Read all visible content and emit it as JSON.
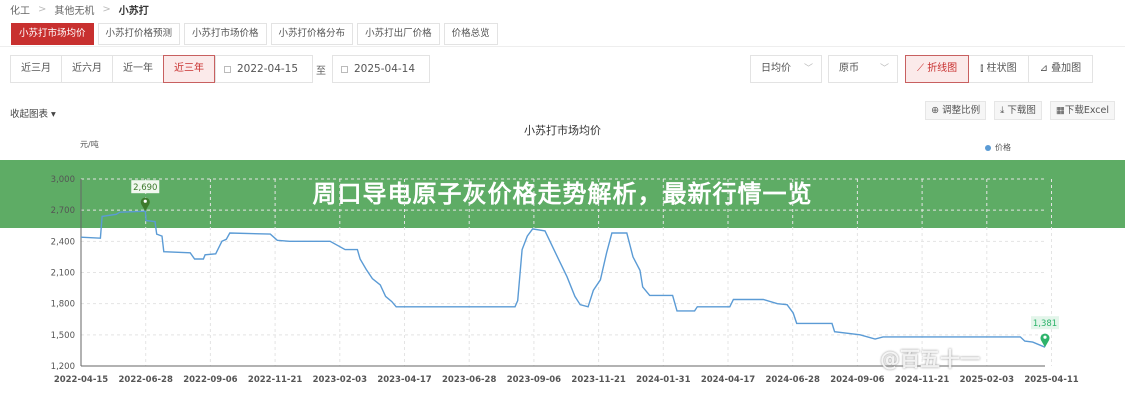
{
  "breadcrumb": [
    "化工",
    "其他无机",
    "小苏打"
  ],
  "tabs": [
    {
      "label": "小苏打市场均价",
      "active": true
    },
    {
      "label": "小苏打价格预测"
    },
    {
      "label": "小苏打市场价格"
    },
    {
      "label": "小苏打价格分布"
    },
    {
      "label": "小苏打出厂价格"
    },
    {
      "label": "价格总览"
    }
  ],
  "ranges": [
    {
      "label": "近三月"
    },
    {
      "label": "近六月"
    },
    {
      "label": "近一年"
    },
    {
      "label": "近三年",
      "active": true
    }
  ],
  "date_from": "2022-04-15",
  "date_sep": "至",
  "date_to": "2025-04-14",
  "select_period": "日均价",
  "select_currency": "原币",
  "chart_types": [
    {
      "label": "折线图",
      "icon": "line-chart-icon",
      "active": true
    },
    {
      "label": "柱状图",
      "icon": "bar-chart-icon"
    },
    {
      "label": "叠加图",
      "icon": "area-chart-icon"
    }
  ],
  "collapse_label": "收起图表",
  "tools": [
    {
      "label": "调整比例",
      "icon": "zoom-icon"
    },
    {
      "label": "下载图",
      "icon": "download-icon"
    },
    {
      "label": "下载Excel",
      "icon": "table-icon"
    }
  ],
  "banner": "周口导电原子灰价格走势解析，最新行情一览",
  "watermark": "@百五十一",
  "colors": {
    "accent": "#c8302f",
    "line": "#5b9bd5",
    "max_marker": "#3d7a2c",
    "min_marker": "#2db36a",
    "banner": "#4ca354"
  },
  "chart_data": {
    "type": "line",
    "title": "小苏打市场均价",
    "ylabel": "元/吨",
    "ylim": [
      1200,
      3000
    ],
    "yticks": [
      1200,
      1500,
      1800,
      2100,
      2400,
      2700,
      3000
    ],
    "xticks": [
      "2022-04-15",
      "2022-06-28",
      "2022-09-06",
      "2022-11-21",
      "2023-02-03",
      "2023-04-17",
      "2023-06-28",
      "2023-09-06",
      "2023-11-21",
      "2024-01-31",
      "2024-04-17",
      "2024-06-28",
      "2024-09-06",
      "2024-11-21",
      "2025-02-03",
      "2025-04-11"
    ],
    "xlim": [
      "2022-04-15",
      "2025-04-14"
    ],
    "grid": true,
    "legend": "top-right",
    "series": [
      {
        "name": "价格",
        "points": [
          [
            "2022-04-15",
            2440
          ],
          [
            "2022-05-07",
            2430
          ],
          [
            "2022-05-09",
            2640
          ],
          [
            "2022-05-25",
            2660
          ],
          [
            "2022-05-29",
            2680
          ],
          [
            "2022-06-27",
            2690
          ],
          [
            "2022-06-28",
            2600
          ],
          [
            "2022-07-08",
            2590
          ],
          [
            "2022-07-10",
            2470
          ],
          [
            "2022-07-16",
            2450
          ],
          [
            "2022-07-18",
            2300
          ],
          [
            "2022-08-17",
            2290
          ],
          [
            "2022-08-22",
            2230
          ],
          [
            "2022-09-01",
            2230
          ],
          [
            "2022-09-03",
            2270
          ],
          [
            "2022-09-15",
            2280
          ],
          [
            "2022-09-22",
            2400
          ],
          [
            "2022-09-27",
            2420
          ],
          [
            "2022-10-01",
            2480
          ],
          [
            "2022-11-16",
            2470
          ],
          [
            "2022-11-24",
            2410
          ],
          [
            "2022-12-08",
            2400
          ],
          [
            "2023-01-23",
            2400
          ],
          [
            "2023-02-09",
            2320
          ],
          [
            "2023-02-23",
            2320
          ],
          [
            "2023-02-26",
            2230
          ],
          [
            "2023-03-05",
            2130
          ],
          [
            "2023-03-12",
            2040
          ],
          [
            "2023-03-21",
            1980
          ],
          [
            "2023-03-27",
            1870
          ],
          [
            "2023-04-03",
            1820
          ],
          [
            "2023-04-08",
            1770
          ],
          [
            "2023-08-21",
            1770
          ],
          [
            "2023-08-24",
            1830
          ],
          [
            "2023-08-29",
            2320
          ],
          [
            "2023-09-04",
            2450
          ],
          [
            "2023-09-10",
            2520
          ],
          [
            "2023-09-24",
            2500
          ],
          [
            "2023-10-11",
            2200
          ],
          [
            "2023-10-19",
            2060
          ],
          [
            "2023-10-28",
            1870
          ],
          [
            "2023-11-03",
            1790
          ],
          [
            "2023-11-12",
            1770
          ],
          [
            "2023-11-18",
            1930
          ],
          [
            "2023-11-26",
            2030
          ],
          [
            "2023-12-03",
            2290
          ],
          [
            "2023-12-09",
            2480
          ],
          [
            "2023-12-26",
            2480
          ],
          [
            "2024-01-02",
            2250
          ],
          [
            "2024-01-10",
            2120
          ],
          [
            "2024-01-13",
            1960
          ],
          [
            "2024-01-21",
            1880
          ],
          [
            "2024-02-16",
            1880
          ],
          [
            "2024-02-21",
            1730
          ],
          [
            "2024-03-12",
            1730
          ],
          [
            "2024-03-15",
            1770
          ],
          [
            "2024-04-21",
            1770
          ],
          [
            "2024-04-25",
            1840
          ],
          [
            "2024-05-29",
            1840
          ],
          [
            "2024-06-14",
            1800
          ],
          [
            "2024-06-25",
            1790
          ],
          [
            "2024-07-02",
            1710
          ],
          [
            "2024-07-06",
            1610
          ],
          [
            "2024-08-15",
            1610
          ],
          [
            "2024-08-18",
            1530
          ],
          [
            "2024-09-16",
            1500
          ],
          [
            "2024-10-03",
            1460
          ],
          [
            "2024-10-12",
            1480
          ],
          [
            "2025-03-17",
            1480
          ],
          [
            "2025-03-22",
            1440
          ],
          [
            "2025-03-31",
            1430
          ],
          [
            "2025-04-14",
            1381
          ]
        ]
      }
    ],
    "annotations": [
      {
        "label": "2,690",
        "date": "2022-06-27",
        "value": 2690,
        "type": "max"
      },
      {
        "label": "1,381",
        "date": "2025-04-14",
        "value": 1381,
        "type": "min"
      }
    ]
  }
}
